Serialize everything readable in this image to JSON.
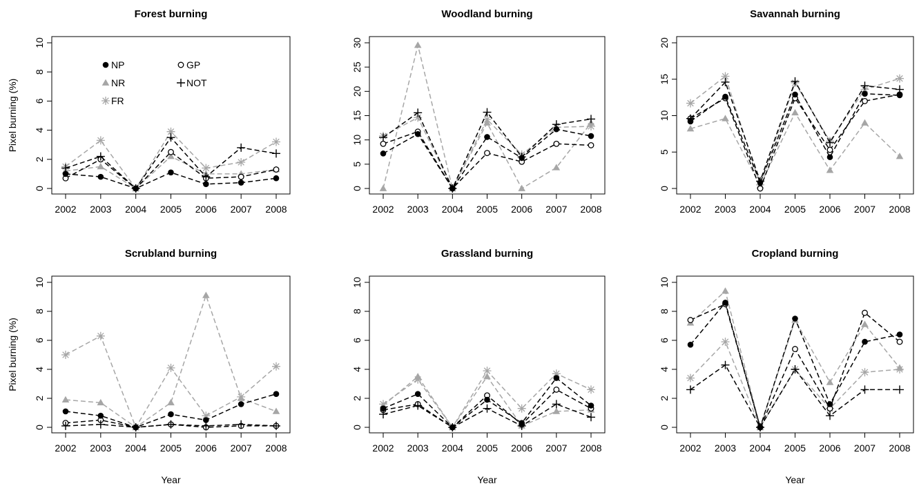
{
  "chart_data": [
    {
      "type": "line",
      "title": "Forest burning",
      "xlabel": "",
      "ylabel": "Pixel burning (%)",
      "x": [
        2002,
        2003,
        2004,
        2005,
        2006,
        2007,
        2008
      ],
      "ylim": [
        0,
        10
      ],
      "yticks": [
        0,
        2,
        4,
        6,
        8,
        10
      ],
      "legend": "top-left",
      "series": [
        {
          "name": "NP",
          "values": [
            1.0,
            0.8,
            0.0,
            1.1,
            0.3,
            0.4,
            0.7
          ]
        },
        {
          "name": "GP",
          "values": [
            0.7,
            2.0,
            0.0,
            2.5,
            0.7,
            0.8,
            1.3
          ]
        },
        {
          "name": "NR",
          "values": [
            1.2,
            1.5,
            0.0,
            2.2,
            1.0,
            1.0,
            1.3
          ]
        },
        {
          "name": "NOT",
          "values": [
            1.4,
            2.2,
            0.0,
            3.5,
            0.8,
            2.8,
            2.4
          ]
        },
        {
          "name": "FR",
          "values": [
            1.5,
            3.3,
            0.0,
            3.9,
            1.4,
            1.8,
            3.2
          ]
        }
      ]
    },
    {
      "type": "line",
      "title": "Woodland burning",
      "xlabel": "",
      "ylabel": "",
      "x": [
        2002,
        2003,
        2004,
        2005,
        2006,
        2007,
        2008
      ],
      "ylim": [
        0,
        30
      ],
      "yticks": [
        0,
        5,
        10,
        15,
        20,
        25,
        30
      ],
      "series": [
        {
          "name": "NP",
          "values": [
            7.2,
            11.2,
            0.0,
            10.6,
            6.3,
            12.2,
            10.8
          ]
        },
        {
          "name": "GP",
          "values": [
            9.2,
            11.7,
            0.0,
            7.3,
            5.5,
            9.2,
            8.9
          ]
        },
        {
          "name": "NR",
          "values": [
            0.0,
            29.5,
            0.0,
            13.5,
            0.0,
            4.3,
            13.5
          ]
        },
        {
          "name": "NOT",
          "values": [
            10.5,
            15.6,
            0.0,
            15.7,
            6.5,
            13.2,
            14.3
          ]
        },
        {
          "name": "FR",
          "values": [
            10.8,
            14.6,
            0.0,
            14.2,
            7.0,
            12.6,
            12.8
          ]
        }
      ]
    },
    {
      "type": "line",
      "title": "Savannah burning",
      "xlabel": "",
      "ylabel": "",
      "x": [
        2002,
        2003,
        2004,
        2005,
        2006,
        2007,
        2008
      ],
      "ylim": [
        0,
        20
      ],
      "yticks": [
        0,
        5,
        10,
        15,
        20
      ],
      "series": [
        {
          "name": "NP",
          "values": [
            9.2,
            12.6,
            0.8,
            12.9,
            4.3,
            13.0,
            12.8
          ]
        },
        {
          "name": "GP",
          "values": [
            9.6,
            12.4,
            0.0,
            12.4,
            5.3,
            12.0,
            12.9
          ]
        },
        {
          "name": "NR",
          "values": [
            8.2,
            9.6,
            0.4,
            10.4,
            2.5,
            9.0,
            4.4
          ]
        },
        {
          "name": "NOT",
          "values": [
            9.6,
            14.6,
            1.0,
            14.7,
            6.3,
            14.1,
            13.6
          ]
        },
        {
          "name": "FR",
          "values": [
            11.7,
            15.4,
            0.5,
            14.5,
            6.5,
            13.6,
            15.1
          ]
        }
      ]
    },
    {
      "type": "line",
      "title": "Scrubland burning",
      "xlabel": "Year",
      "ylabel": "Pixel burning (%)",
      "x": [
        2002,
        2003,
        2004,
        2005,
        2006,
        2007,
        2008
      ],
      "ylim": [
        0,
        10
      ],
      "yticks": [
        0,
        2,
        4,
        6,
        8,
        10
      ],
      "series": [
        {
          "name": "NP",
          "values": [
            1.1,
            0.8,
            0.0,
            0.9,
            0.5,
            1.6,
            2.3
          ]
        },
        {
          "name": "GP",
          "values": [
            0.3,
            0.5,
            0.0,
            0.2,
            0.0,
            0.1,
            0.1
          ]
        },
        {
          "name": "NR",
          "values": [
            1.9,
            1.7,
            0.0,
            1.7,
            9.1,
            2.0,
            1.1
          ]
        },
        {
          "name": "NOT",
          "values": [
            0.1,
            0.2,
            0.0,
            0.2,
            0.1,
            0.2,
            0.1
          ]
        },
        {
          "name": "FR",
          "values": [
            5.0,
            6.3,
            0.0,
            4.1,
            0.8,
            2.1,
            4.2
          ]
        }
      ]
    },
    {
      "type": "line",
      "title": "Grassland burning",
      "xlabel": "Year",
      "ylabel": "",
      "x": [
        2002,
        2003,
        2004,
        2005,
        2006,
        2007,
        2008
      ],
      "ylim": [
        0,
        10
      ],
      "yticks": [
        0,
        2,
        4,
        6,
        8,
        10
      ],
      "series": [
        {
          "name": "NP",
          "values": [
            1.3,
            2.3,
            0.0,
            1.9,
            0.3,
            3.4,
            1.5
          ]
        },
        {
          "name": "GP",
          "values": [
            1.2,
            1.6,
            0.0,
            2.2,
            0.2,
            2.6,
            1.3
          ]
        },
        {
          "name": "NR",
          "values": [
            1.5,
            3.5,
            0.0,
            3.5,
            0.1,
            1.1,
            1.2
          ]
        },
        {
          "name": "NOT",
          "values": [
            0.9,
            1.5,
            0.0,
            1.3,
            0.1,
            1.6,
            0.7
          ]
        },
        {
          "name": "FR",
          "values": [
            1.6,
            3.3,
            0.0,
            3.9,
            1.3,
            3.7,
            2.6
          ]
        }
      ]
    },
    {
      "type": "line",
      "title": "Cropland burning",
      "xlabel": "Year",
      "ylabel": "",
      "x": [
        2002,
        2003,
        2004,
        2005,
        2006,
        2007,
        2008
      ],
      "ylim": [
        0,
        10
      ],
      "yticks": [
        0,
        2,
        4,
        6,
        8,
        10
      ],
      "series": [
        {
          "name": "NP",
          "values": [
            5.7,
            8.6,
            0.0,
            7.5,
            1.6,
            5.9,
            6.4
          ]
        },
        {
          "name": "GP",
          "values": [
            7.4,
            8.5,
            0.0,
            5.4,
            1.3,
            7.9,
            5.9
          ]
        },
        {
          "name": "NR",
          "values": [
            7.2,
            9.4,
            0.0,
            7.4,
            3.1,
            7.1,
            4.1
          ]
        },
        {
          "name": "NOT",
          "values": [
            2.6,
            4.3,
            0.0,
            4.0,
            0.8,
            2.6,
            2.6
          ]
        },
        {
          "name": "FR",
          "values": [
            3.4,
            5.9,
            0.0,
            4.0,
            1.3,
            3.8,
            4.0
          ]
        }
      ]
    }
  ],
  "styles": {
    "NP": {
      "color": "#000000",
      "marker": "filled-circle"
    },
    "GP": {
      "color": "#000000",
      "marker": "open-circle"
    },
    "NR": {
      "color": "#a6a6a6",
      "marker": "filled-triangle"
    },
    "NOT": {
      "color": "#000000",
      "marker": "plus"
    },
    "FR": {
      "color": "#a6a6a6",
      "marker": "asterisk"
    }
  }
}
